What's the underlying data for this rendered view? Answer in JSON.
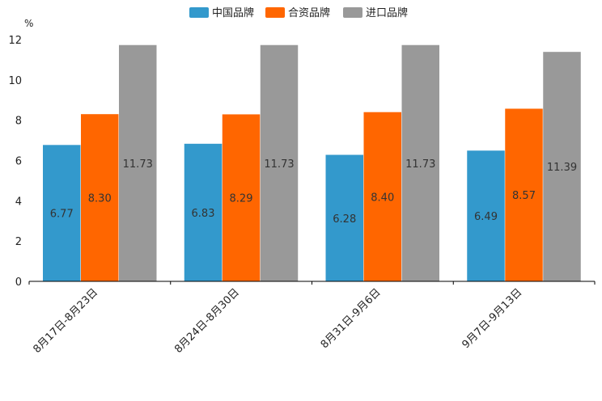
{
  "chart_data": {
    "type": "bar",
    "title": "",
    "xlabel": "",
    "ylabel": "",
    "y_unit": "%",
    "ylim": [
      0,
      12
    ],
    "yticks": [
      0,
      2,
      4,
      6,
      8,
      10,
      12
    ],
    "grid": false,
    "legend_position": "top-center",
    "categories": [
      "8月17日-8月23日",
      "8月24日-8月30日",
      "8月31日-9月6日",
      "9月7日-9月13日"
    ],
    "series": [
      {
        "name": "中国品牌",
        "color": "#3399CC",
        "values": [
          6.77,
          6.83,
          6.28,
          6.49
        ]
      },
      {
        "name": "合资品牌",
        "color": "#FF6600",
        "values": [
          8.3,
          8.29,
          8.4,
          8.57
        ]
      },
      {
        "name": "进口品牌",
        "color": "#999999",
        "values": [
          11.73,
          11.73,
          11.73,
          11.39
        ]
      }
    ]
  }
}
